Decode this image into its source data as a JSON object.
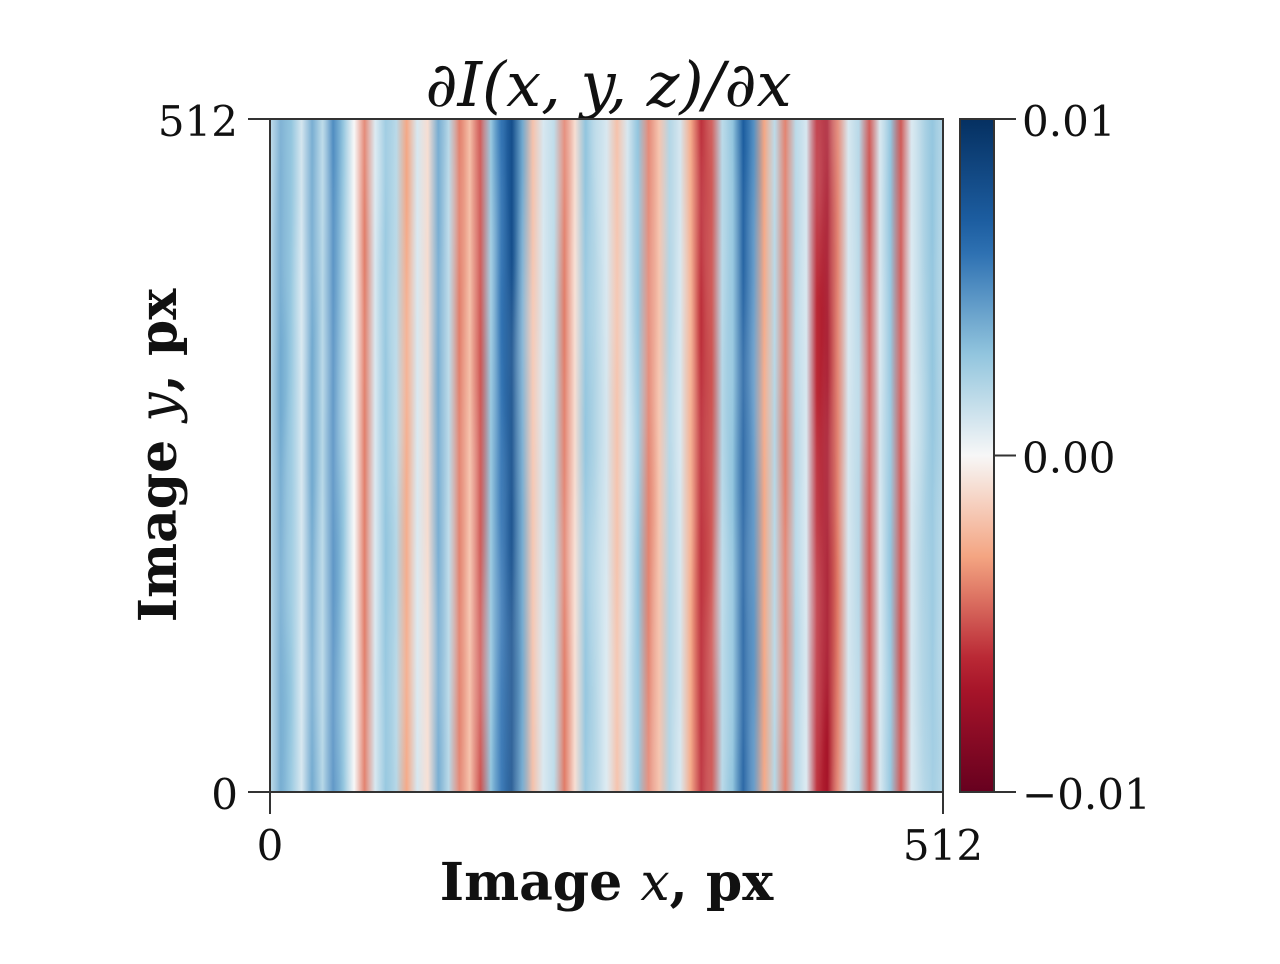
{
  "chart_data": {
    "type": "heatmap",
    "title": "∂I(x, y, z)/∂x",
    "xlabel": {
      "prefix": "Image ",
      "var": "x",
      "suffix": ", px"
    },
    "ylabel": {
      "prefix": "Image ",
      "var": "y",
      "suffix": ", px"
    },
    "xlim": [
      0,
      512
    ],
    "ylim": [
      0,
      512
    ],
    "x_ticks": [
      {
        "value": 0,
        "label": "0"
      },
      {
        "value": 512,
        "label": "512"
      }
    ],
    "y_ticks": [
      {
        "value": 0,
        "label": "0"
      },
      {
        "value": 512,
        "label": "512"
      }
    ],
    "colormap": "RdBu",
    "color_range": [
      -0.01,
      0.01
    ],
    "colorbar_ticks": [
      {
        "value": 0.01,
        "label": "0.01"
      },
      {
        "value": 0.0,
        "label": "0.00"
      },
      {
        "value": -0.01,
        "label": "−0.01"
      }
    ],
    "colors": {
      "dark_red": "#67001f",
      "red": "#b2182b",
      "light_red": "#f4a582",
      "white": "#f7f7f7",
      "light_blue": "#92c5de",
      "blue": "#2166ac",
      "dark_blue": "#053061"
    },
    "column_profile": {
      "x": [
        0,
        8,
        16,
        24,
        32,
        40,
        48,
        56,
        64,
        72,
        80,
        88,
        96,
        104,
        112,
        120,
        128,
        136,
        144,
        152,
        160,
        168,
        176,
        184,
        192,
        200,
        208,
        216,
        224,
        232,
        240,
        248,
        256,
        264,
        272,
        280,
        288,
        296,
        304,
        312,
        320,
        328,
        336,
        344,
        352,
        360,
        368,
        376,
        384,
        392,
        400,
        408,
        416,
        424,
        432,
        440,
        448,
        456,
        464,
        472,
        480,
        488,
        496,
        504,
        512
      ],
      "values": [
        0.002,
        0.004,
        0.003,
        0.001,
        0.004,
        0.002,
        0.005,
        0.003,
        0.0,
        -0.004,
        0.001,
        0.003,
        0.002,
        -0.003,
        0.001,
        -0.001,
        0.004,
        0.002,
        -0.004,
        -0.002,
        -0.005,
        0.003,
        0.006,
        0.008,
        0.004,
        -0.002,
        0.001,
        0.002,
        -0.004,
        -0.001,
        0.003,
        0.002,
        0.001,
        -0.002,
        0.001,
        0.003,
        -0.004,
        -0.002,
        0.002,
        0.001,
        -0.003,
        -0.006,
        -0.005,
        0.002,
        0.003,
        0.007,
        0.005,
        -0.003,
        0.002,
        -0.004,
        0.002,
        0.001,
        -0.006,
        -0.007,
        -0.004,
        0.001,
        0.002,
        -0.005,
        0.001,
        0.003,
        -0.005,
        0.001,
        0.002,
        0.003,
        0.002
      ]
    }
  }
}
